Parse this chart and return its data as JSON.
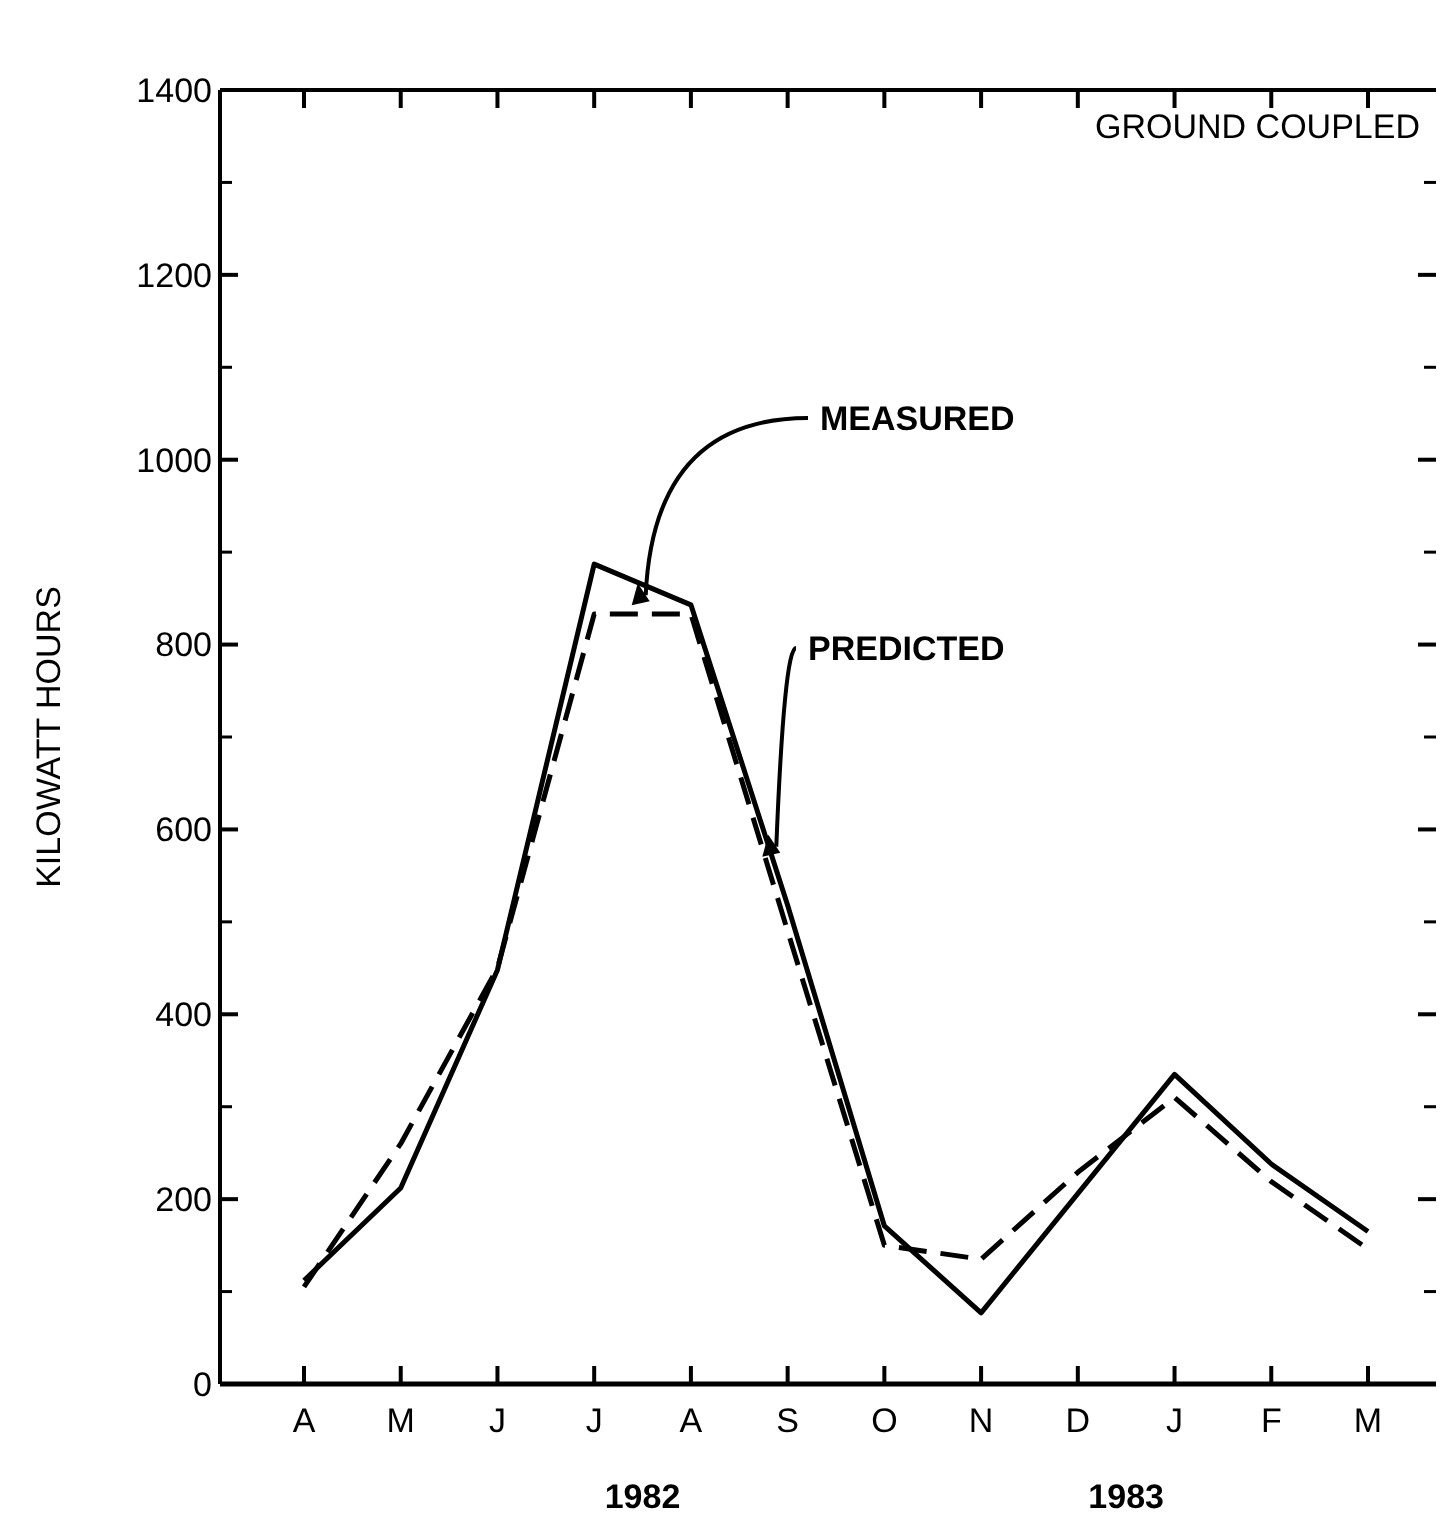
{
  "chart_data": {
    "type": "line",
    "title": "GROUND COUPLED",
    "ylabel": "KILOWATT HOURS",
    "categories": [
      "A",
      "M",
      "J",
      "J",
      "A",
      "S",
      "O",
      "N",
      "D",
      "J",
      "F",
      "M"
    ],
    "series": [
      {
        "name": "MEASURED",
        "color": "#000000",
        "line_style": "solid",
        "values": [
          112,
          212,
          448,
          887,
          843,
          518,
          171,
          77,
          206,
          335,
          238,
          165
        ]
      },
      {
        "name": "PREDICTED",
        "color": "#000000",
        "line_style": "dashed",
        "values": [
          105,
          260,
          450,
          833,
          833,
          490,
          150,
          135,
          229,
          310,
          219,
          146
        ]
      }
    ],
    "ylim": [
      0,
      1400
    ],
    "yticks": [
      0,
      200,
      400,
      600,
      800,
      1000,
      1200,
      1400
    ],
    "annotations": [
      "1982",
      "1983"
    ],
    "grid": false
  }
}
